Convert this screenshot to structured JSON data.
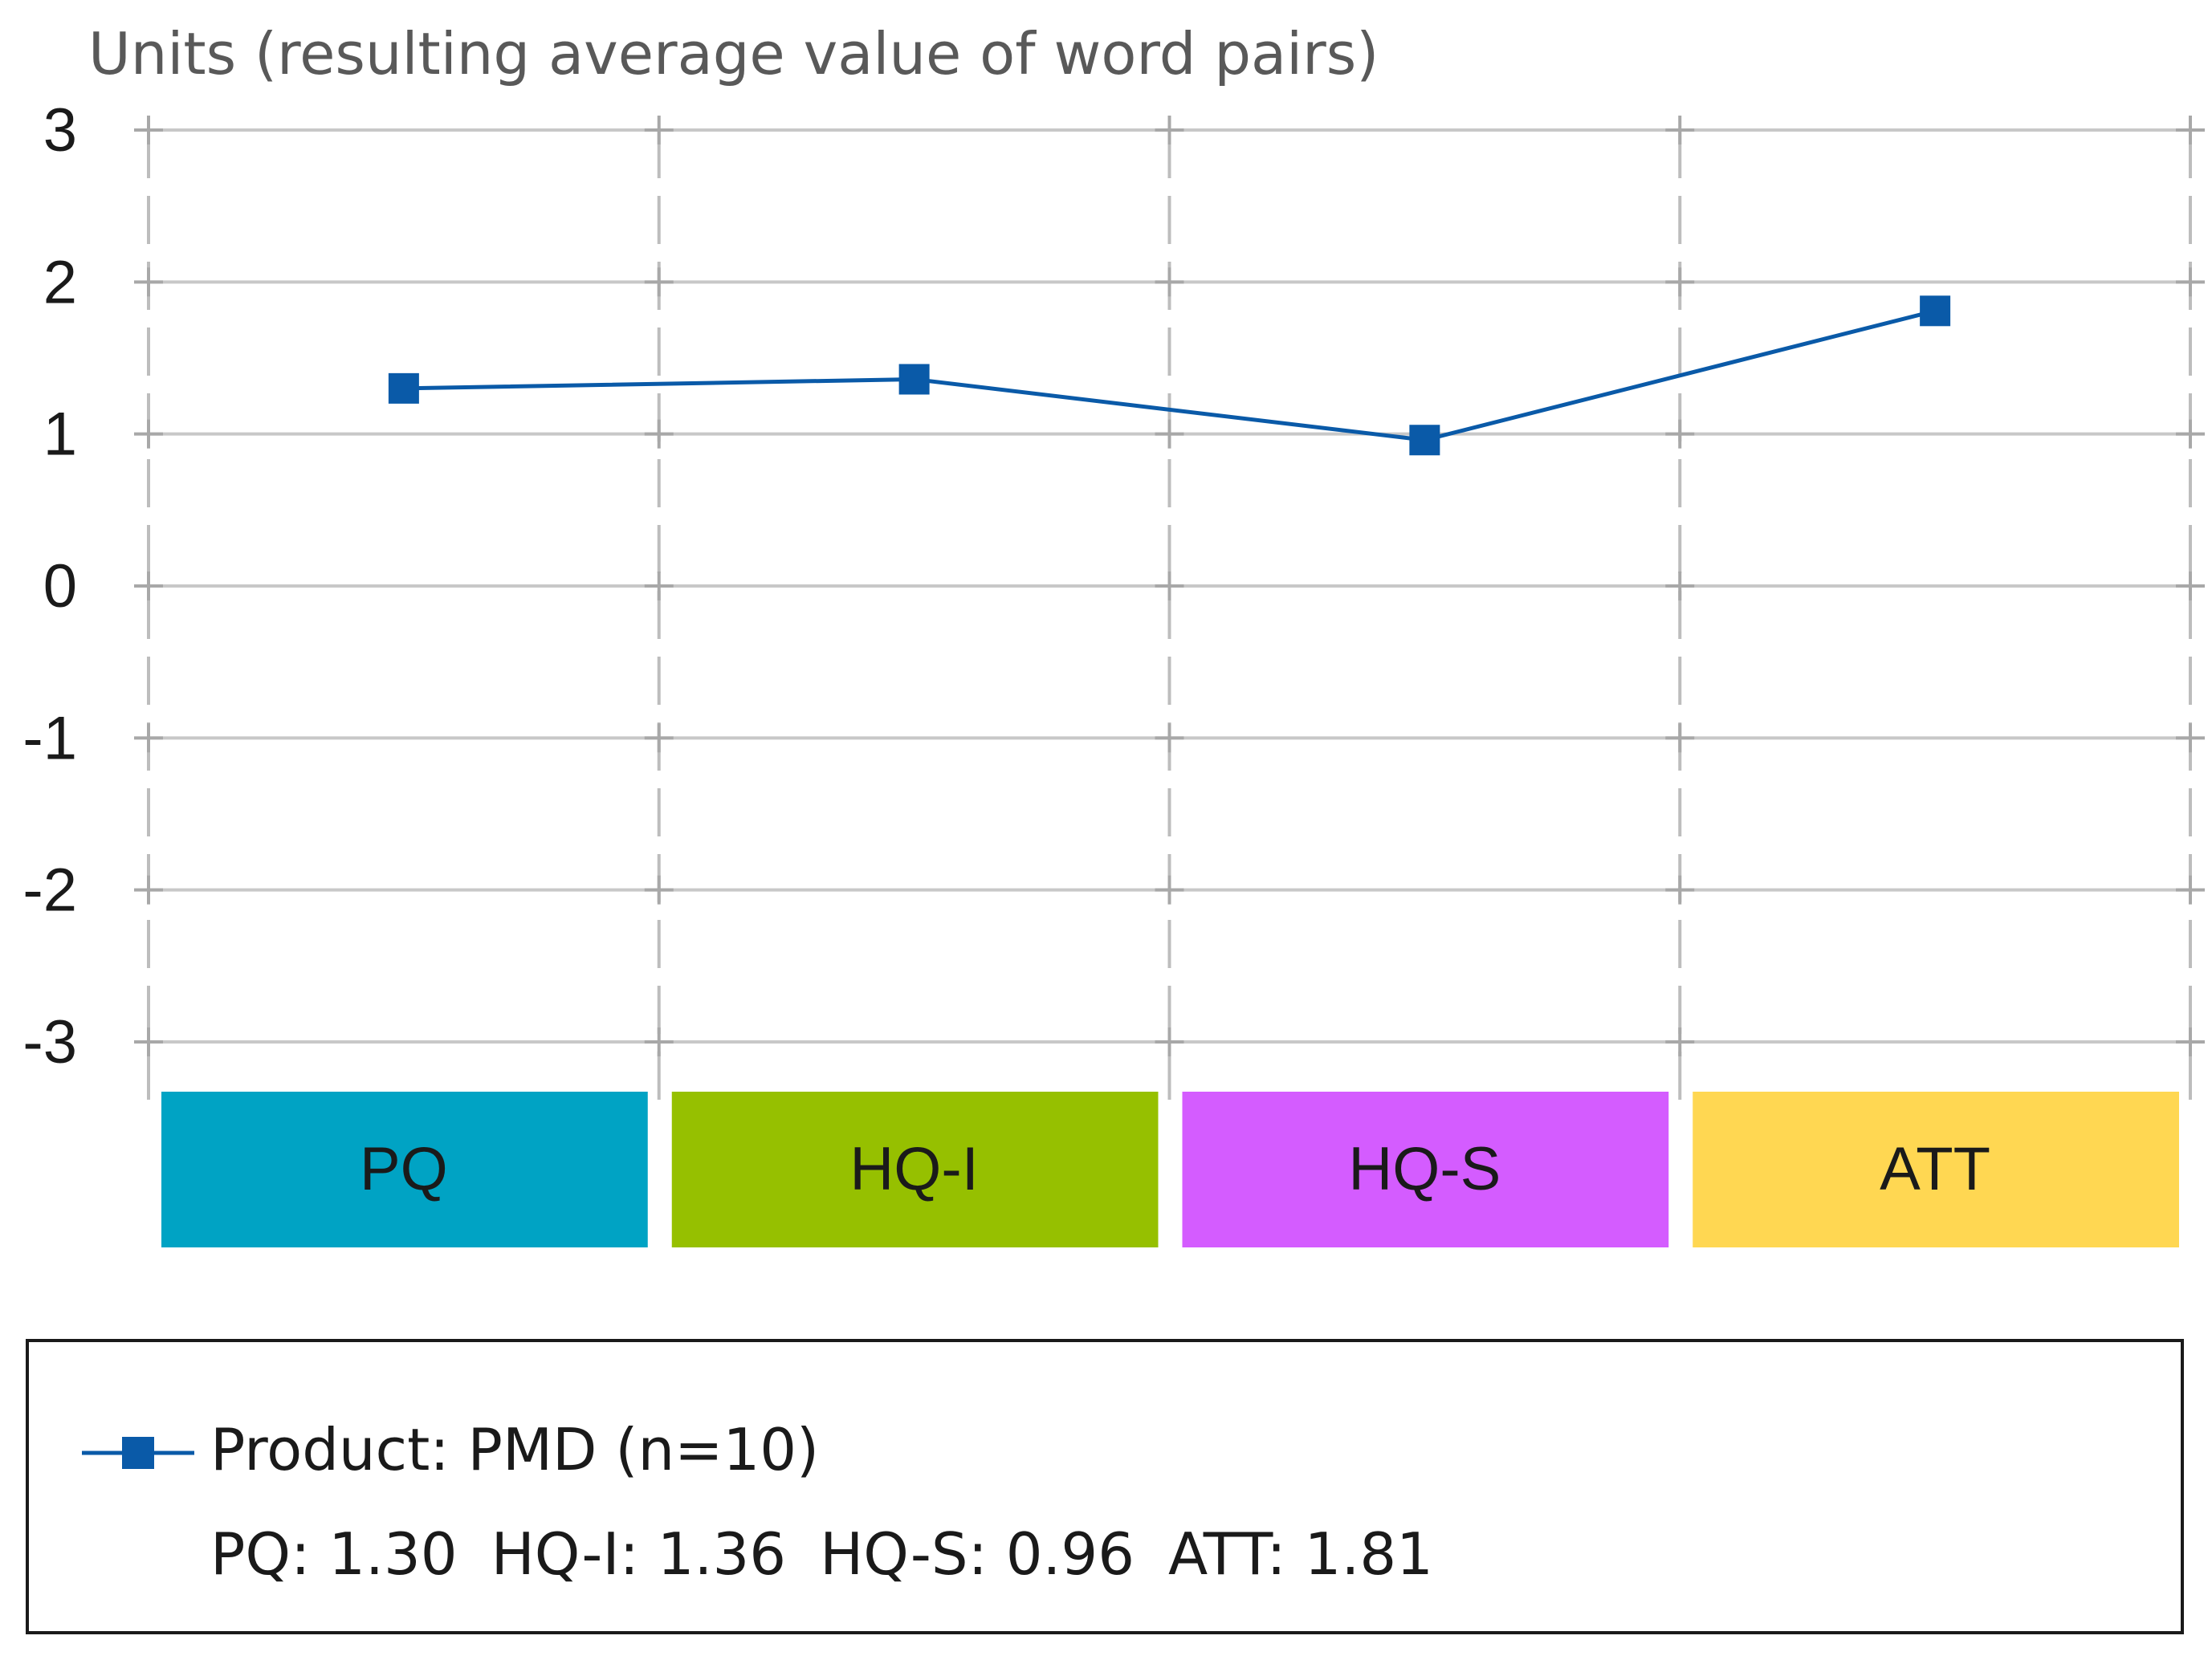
{
  "chart_data": {
    "type": "line",
    "title": "",
    "ylabel": "Units (resulting average value of word pairs)",
    "xlabel": "",
    "ylim": [
      -3,
      3
    ],
    "yticks": [
      3,
      2,
      1,
      0,
      -1,
      -2,
      -3
    ],
    "categories": [
      "PQ",
      "HQ-I",
      "HQ-S",
      "ATT"
    ],
    "category_colors": [
      "#00a3c4",
      "#96c000",
      "#d45cff",
      "#ffd752"
    ],
    "series": [
      {
        "name": "Product: PMD (n=10)",
        "values": [
          1.3,
          1.36,
          0.96,
          1.81
        ],
        "color": "#0a5aa8",
        "marker": "square"
      }
    ],
    "grid": true,
    "legend_position": "bottom"
  },
  "legend": {
    "series_label": "Product: PMD (n=10)",
    "summary": [
      {
        "label": "PQ:",
        "value": "1.30"
      },
      {
        "label": "HQ-I:",
        "value": "1.36"
      },
      {
        "label": "HQ-S:",
        "value": "0.96"
      },
      {
        "label": "ATT:",
        "value": "1.81"
      }
    ]
  }
}
